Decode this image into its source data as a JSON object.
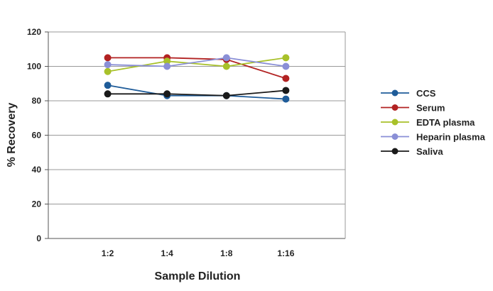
{
  "chart_data": {
    "type": "line",
    "title": "",
    "xlabel": "Sample Dilution",
    "ylabel": "% Recovery",
    "categories": [
      "1:2",
      "1:4",
      "1:8",
      "1:16"
    ],
    "ylim": [
      0,
      120
    ],
    "yticks": [
      0,
      20,
      40,
      60,
      80,
      100,
      120
    ],
    "grid": true,
    "legend_position": "right",
    "series": [
      {
        "name": "CCS",
        "color": "#1f5c99",
        "values": [
          89,
          83,
          83,
          81
        ]
      },
      {
        "name": "Serum",
        "color": "#b22222",
        "values": [
          105,
          105,
          104,
          93
        ]
      },
      {
        "name": "EDTA plasma",
        "color": "#a8c12a",
        "values": [
          97,
          103,
          100,
          105
        ]
      },
      {
        "name": "Heparin plasma",
        "color": "#8a8fd6",
        "values": [
          101,
          100,
          105,
          100
        ]
      },
      {
        "name": "Saliva",
        "color": "#1a1a1a",
        "values": [
          84,
          84,
          83,
          86
        ]
      }
    ]
  }
}
